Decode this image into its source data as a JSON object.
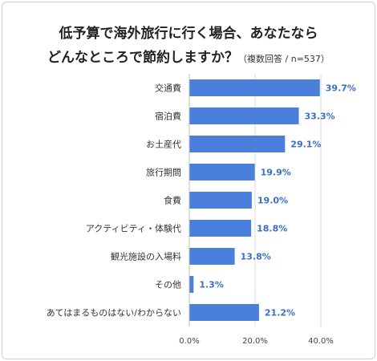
{
  "title_line1": "低予算で海外旅行に行く場合、あなたなら",
  "title_line2": "どんなところで節約しますか？",
  "title_note": "（複数回答 / n=537）",
  "chart_data": {
    "type": "bar",
    "orientation": "horizontal",
    "title": "低予算で海外旅行に行く場合、あなたなら どんなところで節約しますか？",
    "subtitle": "（複数回答 / n=537）",
    "categories": [
      "交通費",
      "宿泊費",
      "お土産代",
      "旅行期間",
      "食費",
      "アクティビティ・体験代",
      "観光施設の入場料",
      "その他",
      "あてはまるものはない/わからない"
    ],
    "values": [
      39.7,
      33.3,
      29.1,
      19.9,
      19.0,
      18.8,
      13.8,
      1.3,
      21.2
    ],
    "value_labels": [
      "39.7%",
      "33.3%",
      "29.1%",
      "19.9%",
      "19.0%",
      "18.8%",
      "13.8%",
      "1.3%",
      "21.2%"
    ],
    "xlim": [
      0,
      40
    ],
    "xticks": [
      0,
      20,
      40
    ],
    "xtick_labels": [
      "0.0%",
      "20.0%",
      "40.0%"
    ],
    "grid": true,
    "bar_color": "#4a7fdc",
    "label_color": "#3a6fc8"
  }
}
